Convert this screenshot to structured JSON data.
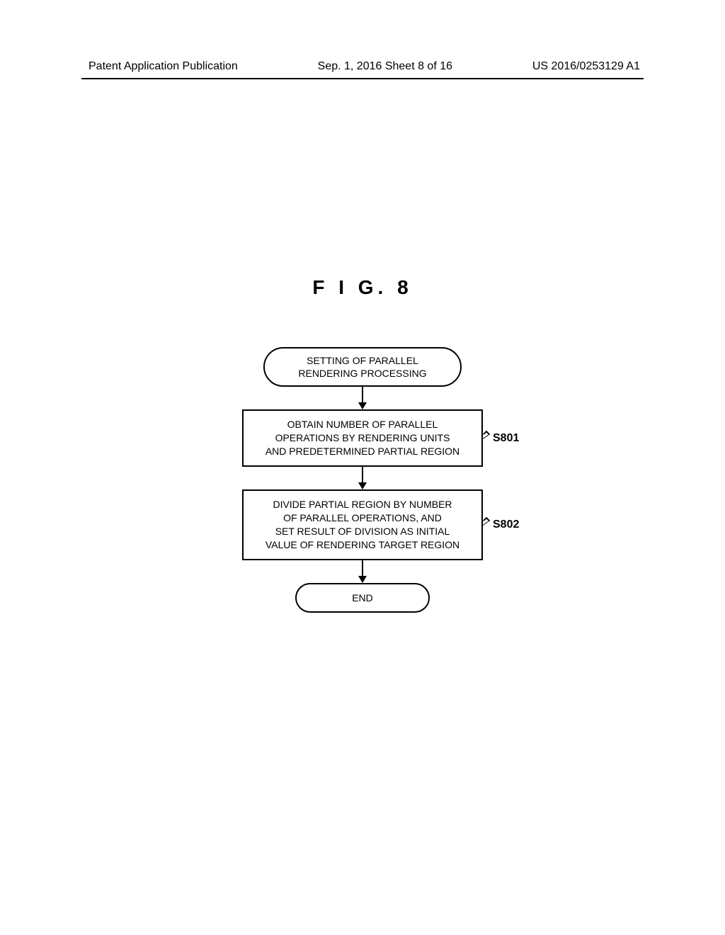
{
  "header": {
    "left": "Patent Application Publication",
    "center": "Sep. 1, 2016   Sheet 8 of 16",
    "right": "US 2016/0253129 A1"
  },
  "figure": {
    "title": "F I G.  8",
    "nodes": {
      "start": "SETTING OF PARALLEL\nRENDERING PROCESSING",
      "s801": "OBTAIN NUMBER OF PARALLEL\nOPERATIONS BY RENDERING UNITS\nAND PREDETERMINED PARTIAL REGION",
      "s802": "DIVIDE PARTIAL REGION BY NUMBER\nOF PARALLEL OPERATIONS, AND\nSET RESULT OF DIVISION AS INITIAL\nVALUE OF RENDERING TARGET REGION",
      "end": "END"
    },
    "labels": {
      "s801": "S801",
      "s802": "S802"
    },
    "style": {
      "type": "flowchart",
      "border_color": "#000000",
      "background_color": "#ffffff",
      "font_size": 14,
      "label_font_size": 16,
      "terminal_radius": 30,
      "line_width": 2,
      "arrow_head_size": 10
    }
  }
}
